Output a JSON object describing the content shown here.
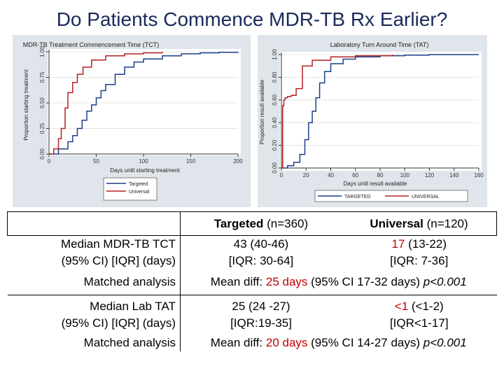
{
  "title": "Do Patients Commence MDR-TB Rx Earlier?",
  "colors": {
    "targeted": "#1a3f8c",
    "universal": "#b22222",
    "panel_bg": "#dfe5ea",
    "title": "#1a2a5a",
    "highlight": "#c00000"
  },
  "chart_data": [
    {
      "type": "line",
      "title": "MDR-TB Treatment Commencement Time (TCT)",
      "xlabel": "Days until starting treatment",
      "ylabel": "Proportion starting treatment",
      "xlim": [
        0,
        200
      ],
      "ylim": [
        0,
        1
      ],
      "xticks": [
        "0",
        "50",
        "100",
        "150",
        "200"
      ],
      "yticks": [
        "0.00",
        "0.25",
        "0.50",
        "0.75",
        "1.00"
      ],
      "legend": [
        "Targeted",
        "Universal"
      ],
      "legend_position": "bottom-right",
      "series": [
        {
          "name": "Targeted",
          "x": [
            0,
            10,
            20,
            25,
            30,
            35,
            40,
            45,
            50,
            55,
            60,
            70,
            80,
            90,
            100,
            120,
            140,
            160,
            180,
            200
          ],
          "y": [
            0,
            0.05,
            0.12,
            0.18,
            0.25,
            0.33,
            0.42,
            0.48,
            0.55,
            0.62,
            0.68,
            0.78,
            0.85,
            0.9,
            0.93,
            0.96,
            0.98,
            0.99,
            0.995,
            1.0
          ]
        },
        {
          "name": "Universal",
          "x": [
            0,
            5,
            10,
            13,
            17,
            20,
            25,
            30,
            36,
            45,
            60,
            80,
            100,
            120
          ],
          "y": [
            0,
            0.05,
            0.15,
            0.25,
            0.45,
            0.6,
            0.7,
            0.78,
            0.85,
            0.92,
            0.96,
            0.98,
            0.99,
            1.0
          ]
        }
      ]
    },
    {
      "type": "line",
      "title": "Laboratory Turn Around Time (TAT)",
      "xlabel": "Days until result available",
      "ylabel": "Proportion result available",
      "xlim": [
        0,
        160
      ],
      "ylim": [
        0,
        1
      ],
      "xticks": [
        "0",
        "20",
        "40",
        "60",
        "80",
        "100",
        "120",
        "140",
        "160"
      ],
      "yticks": [
        "0.00",
        "0.20",
        "0.40",
        "0.60",
        "0.80",
        "1.00"
      ],
      "legend": [
        "TARGETED",
        "UNIVERSAL"
      ],
      "legend_position": "bottom",
      "series": [
        {
          "name": "TARGETED",
          "x": [
            0,
            5,
            10,
            15,
            19,
            22,
            25,
            28,
            31,
            35,
            40,
            50,
            60,
            80,
            100,
            120,
            140,
            160
          ],
          "y": [
            0,
            0.02,
            0.05,
            0.12,
            0.25,
            0.4,
            0.5,
            0.62,
            0.75,
            0.85,
            0.92,
            0.96,
            0.98,
            0.99,
            0.995,
            1.0,
            1.0,
            1.0
          ]
        },
        {
          "name": "UNIVERSAL",
          "x": [
            0,
            1,
            2,
            3,
            5,
            8,
            12,
            17,
            25,
            40,
            60,
            90
          ],
          "y": [
            0,
            0.55,
            0.6,
            0.62,
            0.63,
            0.64,
            0.7,
            0.9,
            0.95,
            0.98,
            0.99,
            1.0
          ]
        }
      ]
    }
  ],
  "table": {
    "header_targeted_bold": "Targeted",
    "header_targeted_n": "(n=360)",
    "header_universal_bold": "Universal",
    "header_universal_n": "(n=120)",
    "tct_label_1": "Median MDR-TB TCT",
    "tct_label_2": "(95% CI) [IQR] (days)",
    "tct_targeted_1": "43 (40-46)",
    "tct_targeted_2": "[IQR: 30-64]",
    "tct_universal_median": "17",
    "tct_universal_ci": "(13-22)",
    "tct_universal_2": "[IQR: 7-36]",
    "matched_label": "Matched analysis",
    "tct_matched_pre": "Mean diff:",
    "tct_matched_days": "25 days",
    "tct_matched_ci": "(95% CI 17-32 days)",
    "tct_matched_p": "p<0.001",
    "tat_label_1": "Median Lab TAT",
    "tat_label_2": "(95% CI) [IQR] (days)",
    "tat_targeted_1": "25 (24 -27)",
    "tat_targeted_2": "[IQR:19-35]",
    "tat_universal_median": "<1",
    "tat_universal_ci": "(<1-2)",
    "tat_universal_2": "[IQR<1-17]",
    "tat_matched_days": "20 days",
    "tat_matched_ci": "(95% CI 14-27 days)",
    "tat_matched_p": "p<0.001"
  }
}
